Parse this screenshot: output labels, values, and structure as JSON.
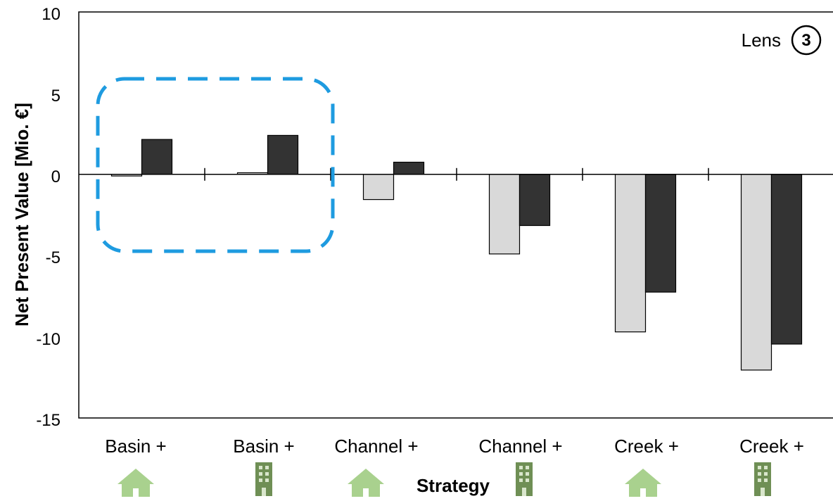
{
  "chart_data": {
    "type": "bar",
    "categories": [
      "Basin +",
      "Basin +",
      "Channel +",
      "Channel +",
      "Creek +",
      "Creek +"
    ],
    "category_icons": [
      "house-icon",
      "building-icon",
      "house-icon",
      "building-icon",
      "house-icon",
      "building-icon"
    ],
    "series": [
      {
        "color": "#d9d9d9",
        "values": [
          -0.1,
          0.1,
          -1.55,
          -4.9,
          -9.7,
          -12.05
        ]
      },
      {
        "color": "#333333",
        "values": [
          2.15,
          2.4,
          0.75,
          -3.15,
          -7.25,
          -10.45
        ]
      }
    ],
    "ylabel": "Net Present Value [Mio. €]",
    "xlabel": "Strategy",
    "ylim": [
      -15,
      10
    ],
    "yticks": [
      "10",
      "5",
      "0",
      "-5",
      "-10",
      "-15"
    ],
    "grid": false,
    "badge": {
      "label": "Lens",
      "number": "3"
    },
    "highlight": {
      "color": "#1e9be0",
      "categories": [
        "Basin +",
        "Basin +"
      ]
    },
    "icon_colors": {
      "house": "#a9d18e",
      "building": "#6f8f55"
    }
  }
}
